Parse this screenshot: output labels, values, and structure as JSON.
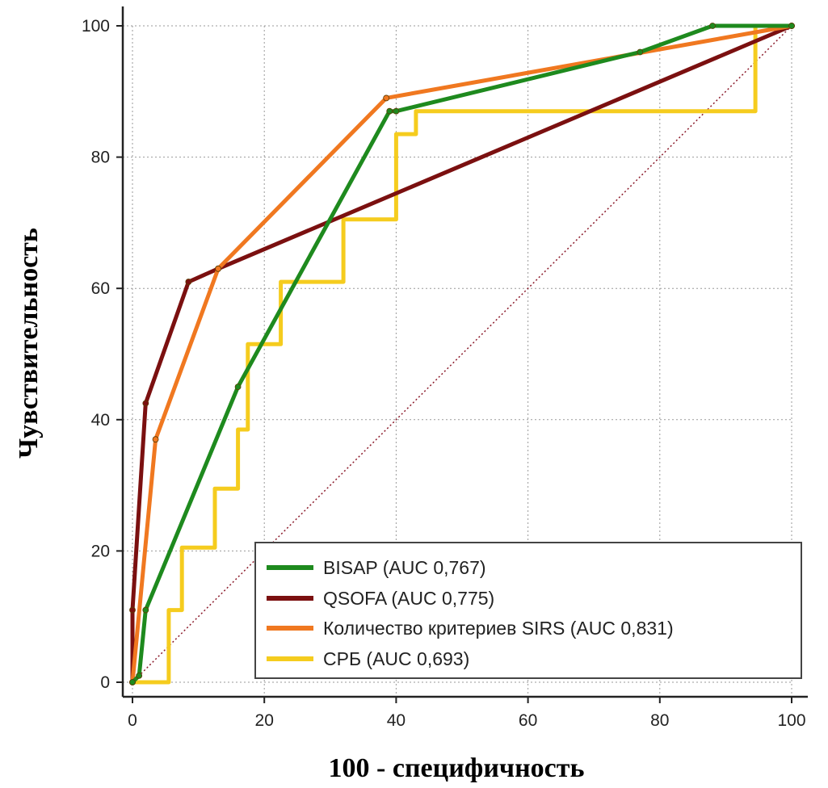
{
  "chart_data": {
    "type": "line",
    "title": "",
    "xlabel": "100 - специфичность",
    "ylabel": "Чувствительность",
    "xlim": [
      0,
      100
    ],
    "ylim": [
      0,
      100
    ],
    "x_ticks": [
      "0",
      "20",
      "40",
      "60",
      "80",
      "100"
    ],
    "y_ticks": [
      "0",
      "20",
      "40",
      "60",
      "80",
      "100"
    ],
    "grid": true,
    "legend_position": "bottom-right",
    "reference_line": {
      "x": [
        0,
        100
      ],
      "y": [
        0,
        100
      ],
      "color": "#8b1a2a",
      "style": "dotted"
    },
    "series": [
      {
        "name": "BISAP (AUC 0,767)",
        "color": "#1e8a1e",
        "step": false,
        "x": [
          0,
          1,
          2,
          16,
          39,
          40,
          77,
          88,
          100
        ],
        "y": [
          0,
          1,
          11,
          45,
          87,
          87,
          96,
          100,
          100
        ]
      },
      {
        "name": "QSOFA (AUC 0,775)",
        "color": "#7b1010",
        "step": false,
        "x": [
          0,
          0,
          2,
          8.5,
          13,
          100
        ],
        "y": [
          0,
          11,
          42.5,
          61,
          63,
          100
        ]
      },
      {
        "name": "Количество критериев SIRS (AUC 0,831)",
        "color": "#f07820",
        "step": false,
        "x": [
          0,
          3.5,
          13,
          38.5,
          100
        ],
        "y": [
          0,
          37,
          63,
          89,
          100
        ]
      },
      {
        "name": "СРБ (AUC 0,693)",
        "color": "#f5cc1e",
        "step": true,
        "x": [
          0,
          5.5,
          5.5,
          7.5,
          7.5,
          12.5,
          12.5,
          16,
          16,
          17.5,
          17.5,
          22.5,
          22.5,
          32,
          32,
          40,
          40,
          43,
          43,
          94.5,
          94.5,
          100
        ],
        "y": [
          0,
          0,
          11,
          11,
          20.5,
          20.5,
          29.5,
          29.5,
          38.5,
          38.5,
          51.5,
          51.5,
          61,
          61,
          70.5,
          70.5,
          83.5,
          83.5,
          87,
          87,
          100,
          100
        ]
      }
    ]
  }
}
